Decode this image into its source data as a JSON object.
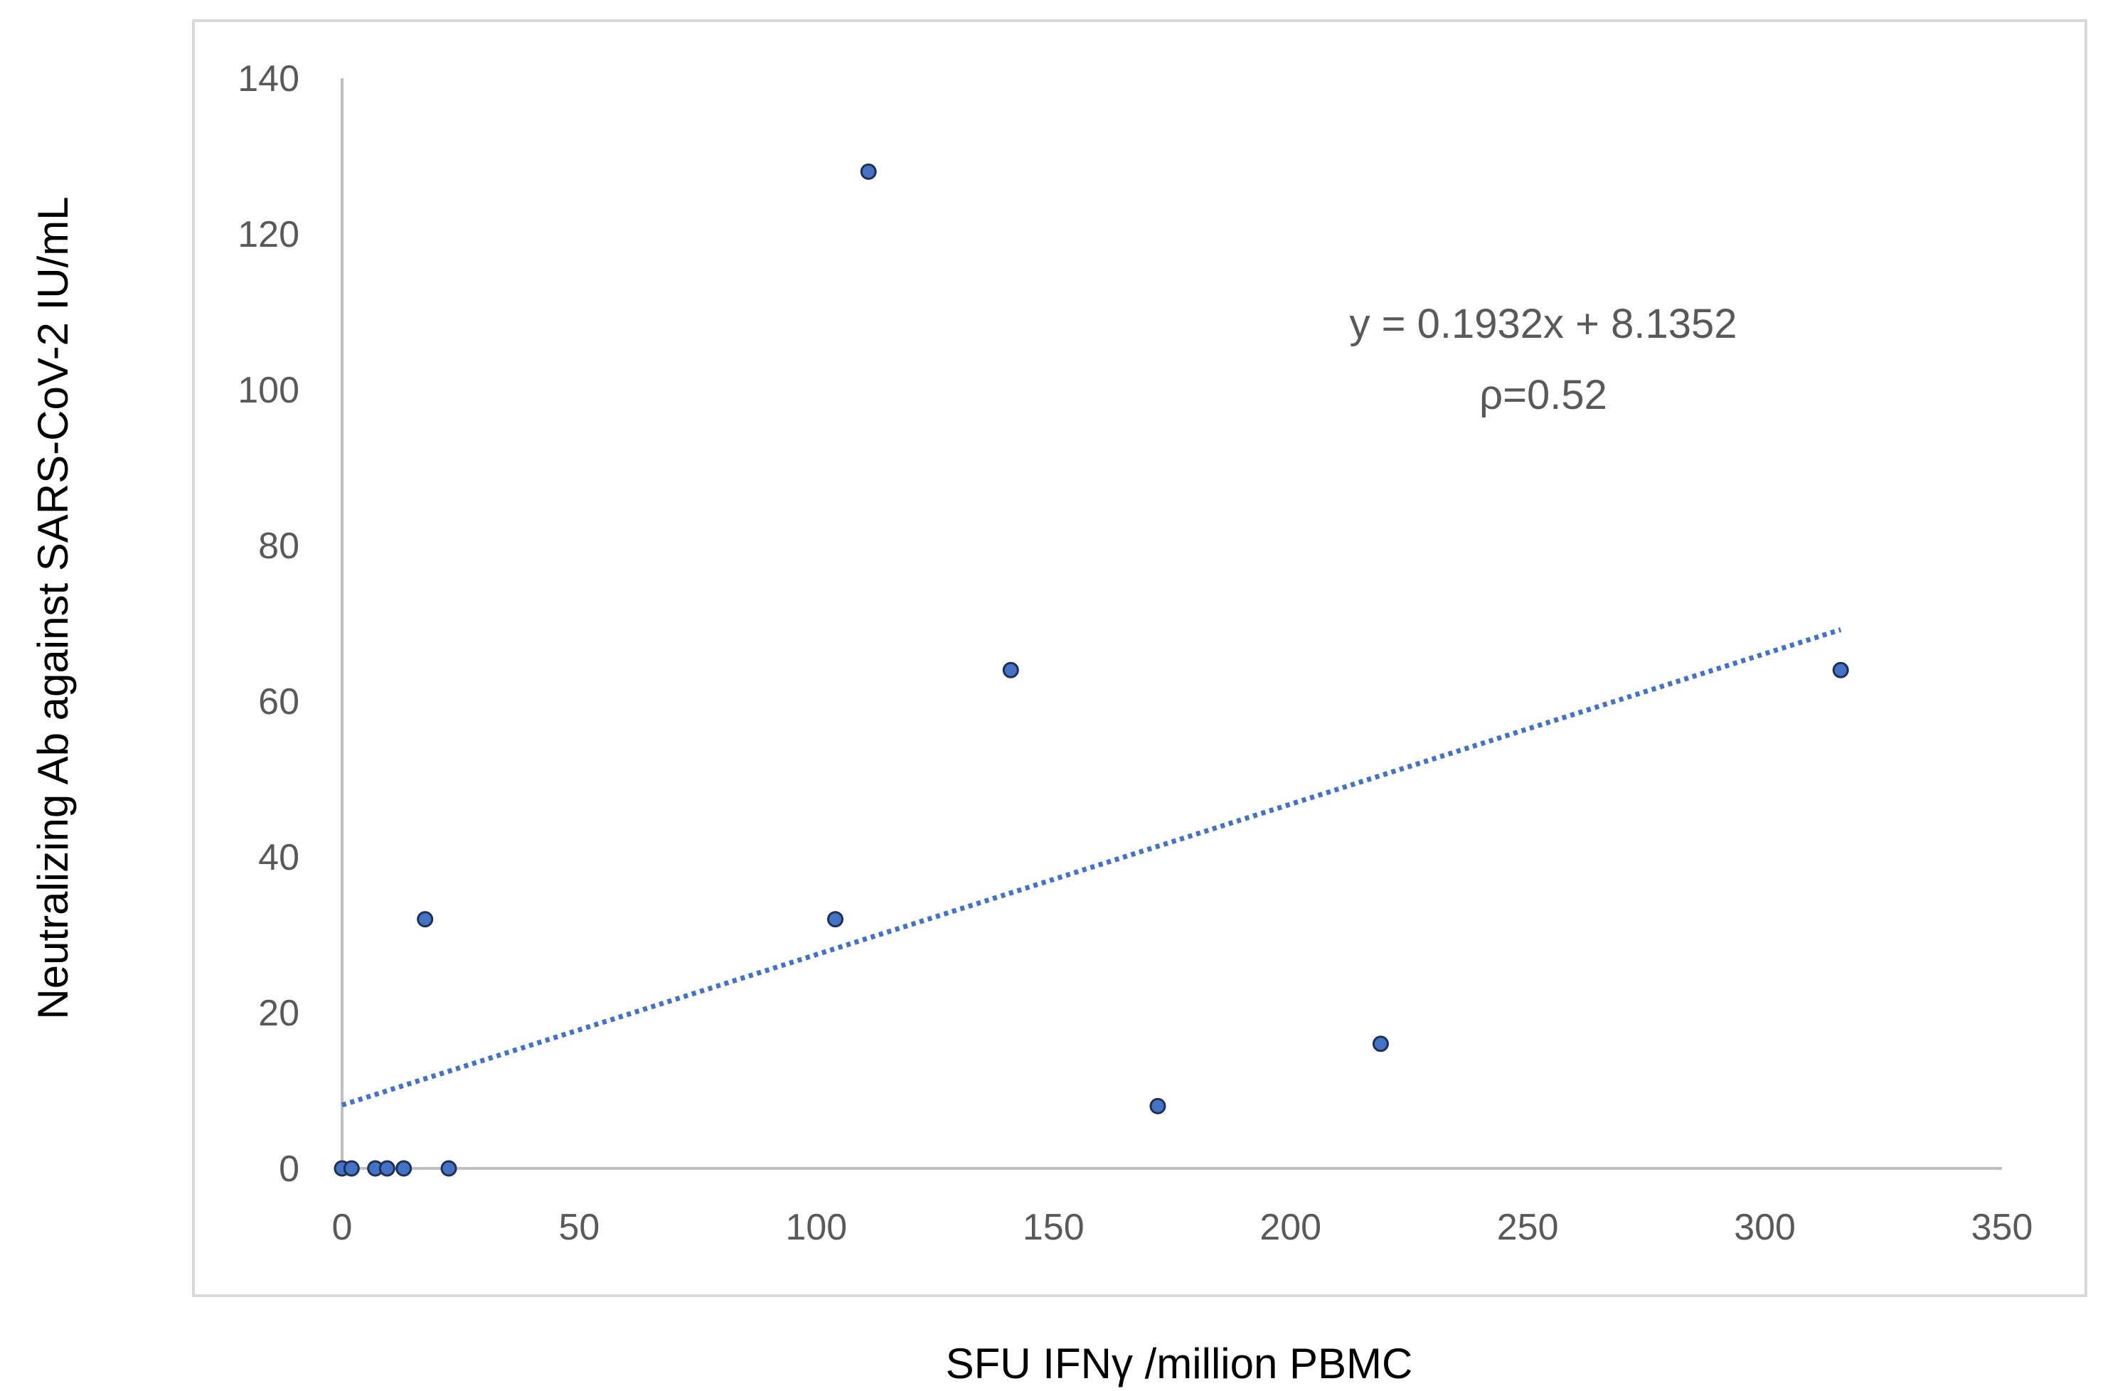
{
  "chart_data": {
    "type": "scatter",
    "title": "",
    "xlabel": "SFU IFNγ /million PBMC",
    "ylabel": "Neutralizing Ab against SARS-CoV-2 IU/mL",
    "xlim": [
      0,
      350
    ],
    "ylim": [
      0,
      140
    ],
    "xticks": [
      "0",
      "50",
      "100",
      "150",
      "200",
      "250",
      "300",
      "350"
    ],
    "yticks": [
      "0",
      "20",
      "40",
      "60",
      "80",
      "100",
      "120",
      "140"
    ],
    "grid": false,
    "legend": "none",
    "points": [
      {
        "x": 0,
        "y": 0
      },
      {
        "x": 2,
        "y": 0
      },
      {
        "x": 7,
        "y": 0
      },
      {
        "x": 9.5,
        "y": 0
      },
      {
        "x": 13,
        "y": 0
      },
      {
        "x": 22.5,
        "y": 0
      },
      {
        "x": 17.5,
        "y": 32
      },
      {
        "x": 104,
        "y": 32
      },
      {
        "x": 111,
        "y": 128
      },
      {
        "x": 141,
        "y": 64
      },
      {
        "x": 172,
        "y": 8
      },
      {
        "x": 219,
        "y": 16
      },
      {
        "x": 316,
        "y": 64
      }
    ],
    "trendline": {
      "type": "linear",
      "slope": 0.1932,
      "intercept": 8.1352,
      "x_range": [
        0,
        316
      ],
      "style": "dotted"
    },
    "annotations": {
      "equation": "y = 0.1932x + 8.1352",
      "correlation": "ρ=0.52"
    },
    "colors": {
      "marker_fill": "#4472c4",
      "marker_edge": "#1f2f55",
      "trendline": "#4472c4",
      "axis": "#bfbfbf",
      "frame": "#d9d9d9",
      "tick_text": "#595959"
    }
  }
}
